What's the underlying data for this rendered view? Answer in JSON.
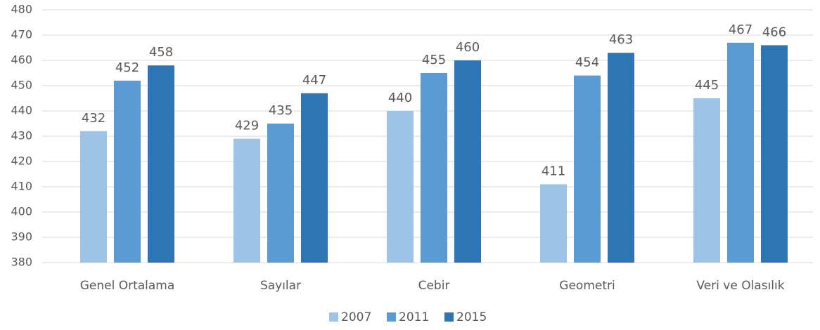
{
  "chart_data": {
    "type": "bar",
    "categories": [
      "Genel Ortalama",
      "Sayılar",
      "Cebir",
      "Geometri",
      "Veri ve Olasılık"
    ],
    "series": [
      {
        "name": "2007",
        "color": "#9dc3e6",
        "values": [
          432,
          429,
          440,
          411,
          445
        ]
      },
      {
        "name": "2011",
        "color": "#5b9bd5",
        "values": [
          452,
          435,
          455,
          454,
          467
        ]
      },
      {
        "name": "2015",
        "color": "#2e75b6",
        "values": [
          458,
          447,
          460,
          463,
          466
        ]
      }
    ],
    "ylim": [
      380,
      480
    ],
    "yticks": [
      380,
      390,
      400,
      410,
      420,
      430,
      440,
      450,
      460,
      470,
      480
    ],
    "grid": true,
    "legend": "bottom"
  }
}
